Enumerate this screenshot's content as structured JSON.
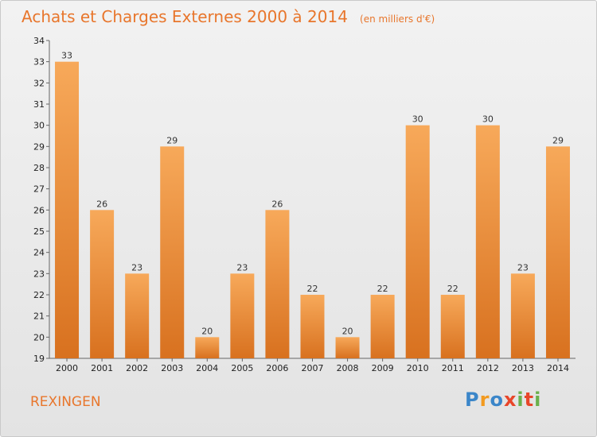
{
  "chart_data": {
    "type": "bar",
    "title": "Achats et Charges Externes 2000 à 2014",
    "subtitle": "(en milliers d'€)",
    "categories": [
      "2000",
      "2001",
      "2002",
      "2003",
      "2004",
      "2005",
      "2006",
      "2007",
      "2008",
      "2009",
      "2010",
      "2011",
      "2012",
      "2013",
      "2014"
    ],
    "values": [
      33,
      26,
      23,
      29,
      20,
      23,
      26,
      22,
      20,
      22,
      30,
      22,
      30,
      23,
      29
    ],
    "ylim": [
      19,
      34
    ],
    "yticks": [
      19,
      20,
      21,
      22,
      23,
      24,
      25,
      26,
      27,
      28,
      29,
      30,
      31,
      32,
      33,
      34
    ],
    "xlabel": "",
    "ylabel": "",
    "grid": false,
    "legend": "none",
    "data_labels": true
  },
  "footer": {
    "commune": "REXINGEN",
    "brand_letters": [
      "P",
      "r",
      "o",
      "x",
      "i",
      "t",
      "i"
    ]
  },
  "colors": {
    "bar_light": "#f7a95a",
    "bar_dark": "#d8711f",
    "title": "#e8762c",
    "brand": [
      "#3b86c9",
      "#f29a1f",
      "#3b86c9",
      "#e8462a",
      "#6ab04c",
      "#e8462a",
      "#6ab04c"
    ]
  }
}
